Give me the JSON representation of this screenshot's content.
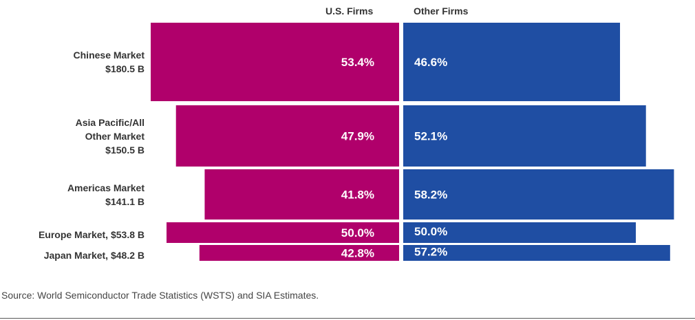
{
  "chart_data": {
    "type": "bar",
    "series_names": [
      "U.S. Firms",
      "Other Firms"
    ],
    "colors": {
      "us": "#b0006b",
      "other": "#1f4ea3"
    },
    "categories": [
      {
        "lines": [
          "Chinese Market",
          "$180.5 B"
        ],
        "us": "53.4%",
        "other": "46.6%",
        "us_value": 53.4,
        "other_value": 46.6,
        "market_size": 180.5
      },
      {
        "lines": [
          "Asia Pacific/All",
          "Other Market",
          "$150.5 B"
        ],
        "us": "47.9%",
        "other": "52.1%",
        "us_value": 47.9,
        "other_value": 52.1,
        "market_size": 150.5
      },
      {
        "lines": [
          "Americas Market",
          "$141.1 B"
        ],
        "us": "41.8%",
        "other": "58.2%",
        "us_value": 41.8,
        "other_value": 58.2,
        "market_size": 141.1
      },
      {
        "lines": [
          "Europe Market, $53.8 B"
        ],
        "us": "50.0%",
        "other": "50.0%",
        "us_value": 50.0,
        "other_value": 50.0,
        "market_size": 53.8
      },
      {
        "lines": [
          "Japan Market, $48.2 B"
        ],
        "us": "42.8%",
        "other": "57.2%",
        "us_value": 42.8,
        "other_value": 57.2,
        "market_size": 48.2
      }
    ]
  },
  "source": "Source: World Semiconductor Trade Statistics (WSTS) and SIA Estimates."
}
